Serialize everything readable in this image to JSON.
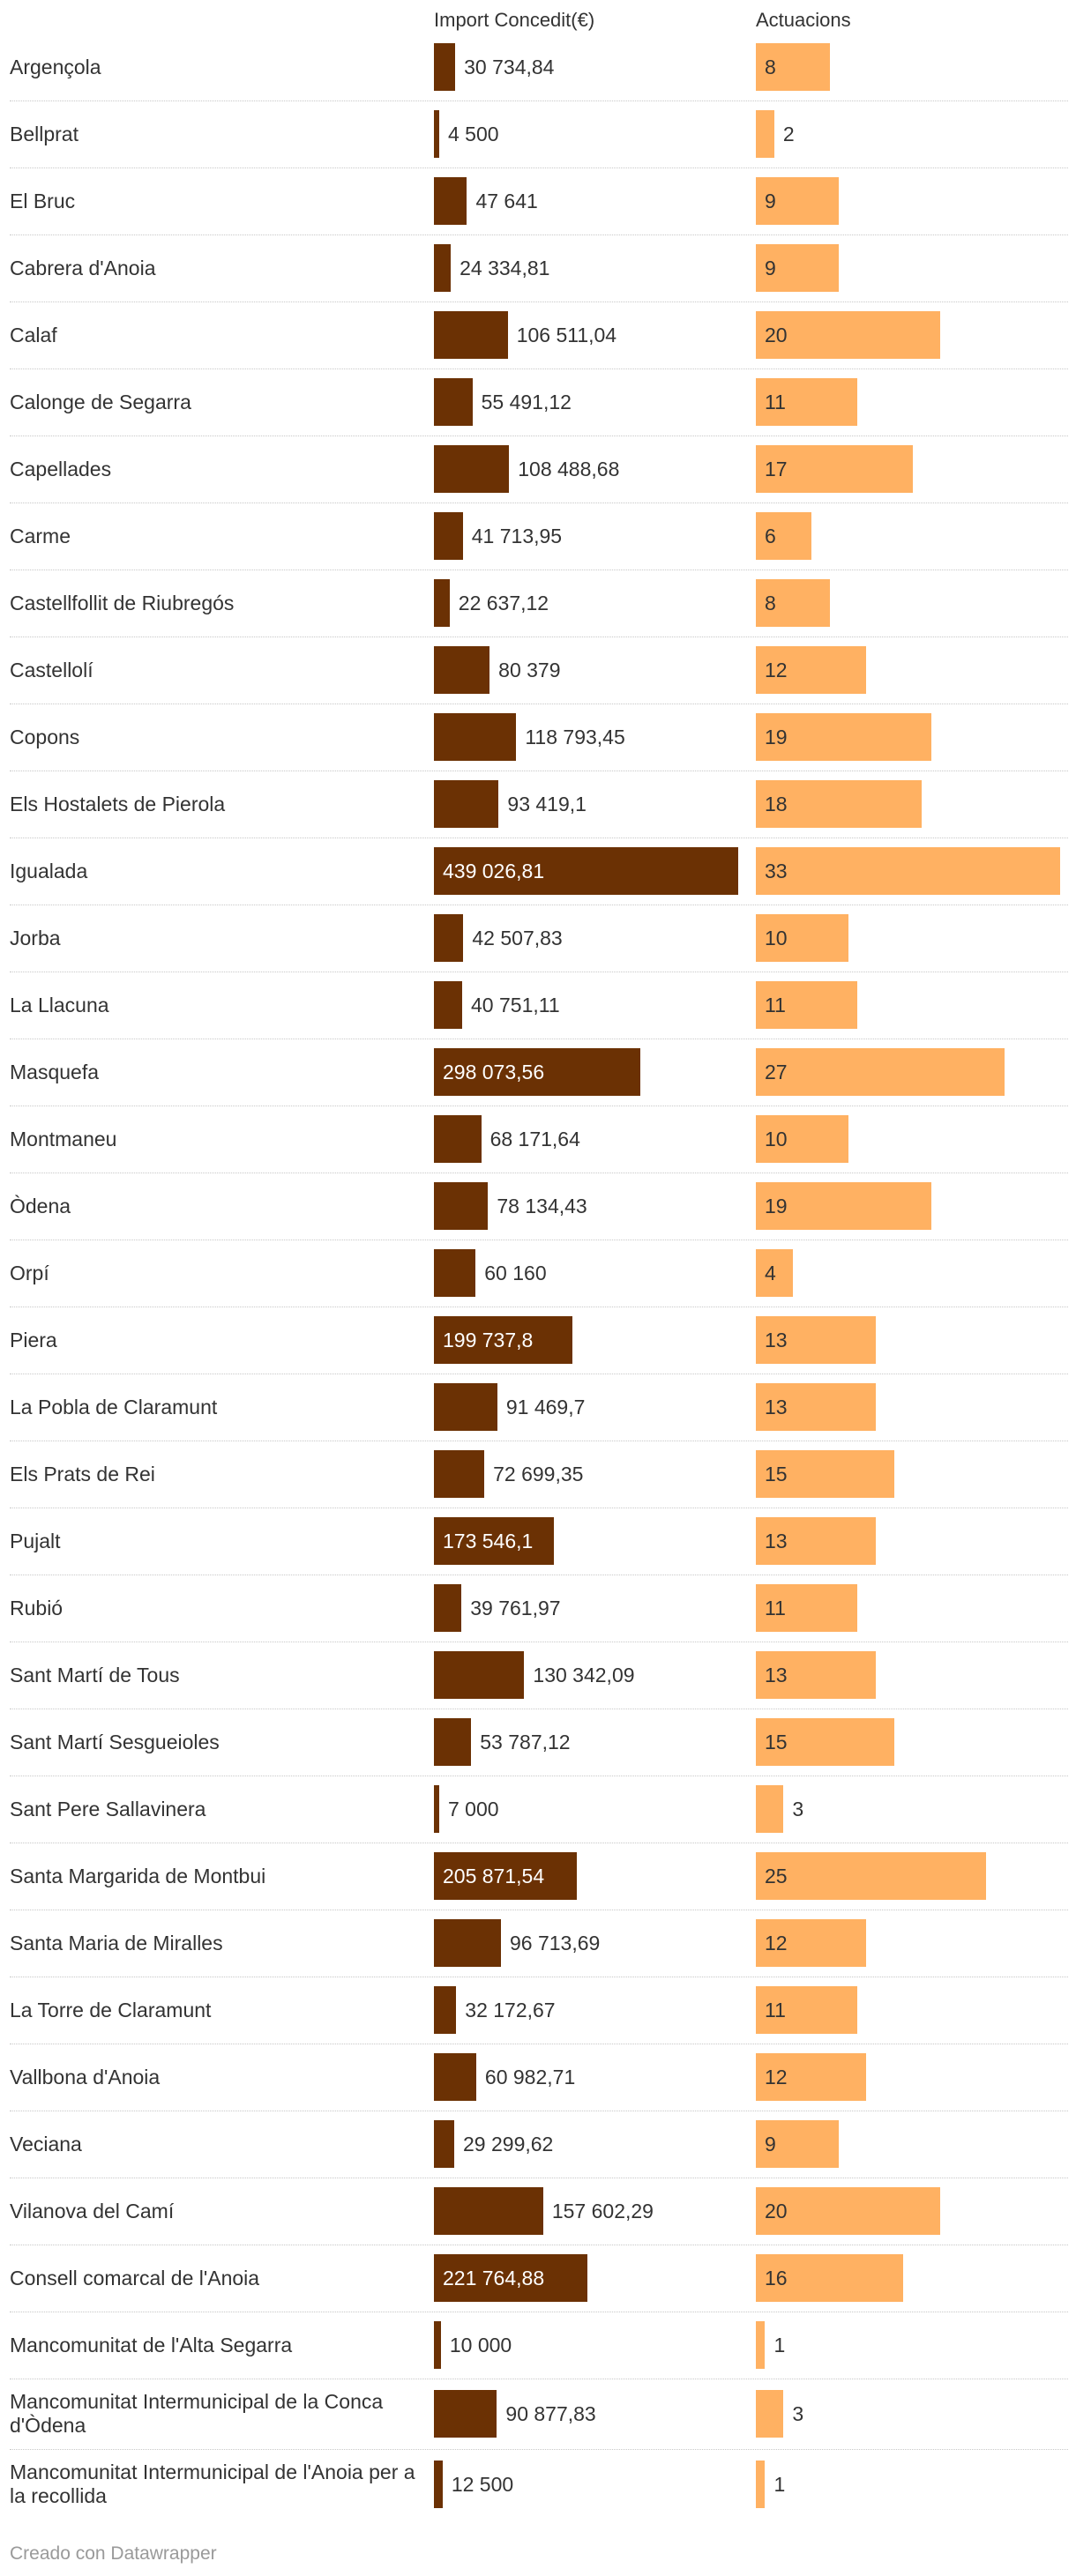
{
  "chart_data": {
    "type": "table",
    "columns": [
      "",
      "Import Concedit(€)",
      "Actuacions"
    ],
    "series": [
      {
        "name": "Import Concedit(€)",
        "color": "#6b3104"
      },
      {
        "name": "Actuacions",
        "color": "#ffb162"
      }
    ],
    "rows": [
      {
        "name": "Argençola",
        "import": 30734.84,
        "import_label": "30 734,84",
        "actuacions": 8
      },
      {
        "name": "Bellprat",
        "import": 4500,
        "import_label": "4 500",
        "actuacions": 2
      },
      {
        "name": "El Bruc",
        "import": 47641,
        "import_label": "47 641",
        "actuacions": 9
      },
      {
        "name": "Cabrera d'Anoia",
        "import": 24334.81,
        "import_label": "24 334,81",
        "actuacions": 9
      },
      {
        "name": "Calaf",
        "import": 106511.04,
        "import_label": "106 511,04",
        "actuacions": 20
      },
      {
        "name": "Calonge de Segarra",
        "import": 55491.12,
        "import_label": "55 491,12",
        "actuacions": 11
      },
      {
        "name": "Capellades",
        "import": 108488.68,
        "import_label": "108 488,68",
        "actuacions": 17
      },
      {
        "name": "Carme",
        "import": 41713.95,
        "import_label": "41 713,95",
        "actuacions": 6
      },
      {
        "name": "Castellfollit de Riubregós",
        "import": 22637.12,
        "import_label": "22 637,12",
        "actuacions": 8
      },
      {
        "name": "Castellolí",
        "import": 80379,
        "import_label": "80 379",
        "actuacions": 12
      },
      {
        "name": "Copons",
        "import": 118793.45,
        "import_label": "118 793,45",
        "actuacions": 19
      },
      {
        "name": "Els Hostalets de Pierola",
        "import": 93419.1,
        "import_label": "93 419,1",
        "actuacions": 18
      },
      {
        "name": "Igualada",
        "import": 439026.81,
        "import_label": "439 026,81",
        "actuacions": 33
      },
      {
        "name": "Jorba",
        "import": 42507.83,
        "import_label": "42 507,83",
        "actuacions": 10
      },
      {
        "name": "La Llacuna",
        "import": 40751.11,
        "import_label": "40 751,11",
        "actuacions": 11
      },
      {
        "name": "Masquefa",
        "import": 298073.56,
        "import_label": "298 073,56",
        "actuacions": 27
      },
      {
        "name": "Montmaneu",
        "import": 68171.64,
        "import_label": "68 171,64",
        "actuacions": 10
      },
      {
        "name": "Òdena",
        "import": 78134.43,
        "import_label": "78 134,43",
        "actuacions": 19
      },
      {
        "name": "Orpí",
        "import": 60160,
        "import_label": "60 160",
        "actuacions": 4
      },
      {
        "name": "Piera",
        "import": 199737.8,
        "import_label": "199 737,8",
        "actuacions": 13
      },
      {
        "name": "La Pobla de Claramunt",
        "import": 91469.7,
        "import_label": "91 469,7",
        "actuacions": 13
      },
      {
        "name": "Els Prats de Rei",
        "import": 72699.35,
        "import_label": "72 699,35",
        "actuacions": 15
      },
      {
        "name": "Pujalt",
        "import": 173546.1,
        "import_label": "173 546,1",
        "actuacions": 13
      },
      {
        "name": "Rubió",
        "import": 39761.97,
        "import_label": "39 761,97",
        "actuacions": 11
      },
      {
        "name": "Sant Martí de Tous",
        "import": 130342.09,
        "import_label": "130 342,09",
        "actuacions": 13
      },
      {
        "name": "Sant Martí Sesgueioles",
        "import": 53787.12,
        "import_label": "53 787,12",
        "actuacions": 15
      },
      {
        "name": "Sant Pere Sallavinera",
        "import": 7000,
        "import_label": "7 000",
        "actuacions": 3
      },
      {
        "name": "Santa Margarida de Montbui",
        "import": 205871.54,
        "import_label": "205 871,54",
        "actuacions": 25
      },
      {
        "name": "Santa Maria de Miralles",
        "import": 96713.69,
        "import_label": "96 713,69",
        "actuacions": 12
      },
      {
        "name": "La Torre de Claramunt",
        "import": 32172.67,
        "import_label": "32 172,67",
        "actuacions": 11
      },
      {
        "name": "Vallbona d'Anoia",
        "import": 60982.71,
        "import_label": "60 982,71",
        "actuacions": 12
      },
      {
        "name": "Veciana",
        "import": 29299.62,
        "import_label": "29 299,62",
        "actuacions": 9
      },
      {
        "name": "Vilanova del Camí",
        "import": 157602.29,
        "import_label": "157 602,29",
        "actuacions": 20
      },
      {
        "name": "Consell comarcal de l'Anoia",
        "import": 221764.88,
        "import_label": "221 764,88",
        "actuacions": 16
      },
      {
        "name": "Mancomunitat de l'Alta Segarra",
        "import": 10000,
        "import_label": "10 000",
        "actuacions": 1
      },
      {
        "name": "Mancomunitat Intermunicipal de la Conca d'Òdena",
        "import": 90877.83,
        "import_label": "90 877,83",
        "actuacions": 3
      },
      {
        "name": "Mancomunitat Intermunicipal de l'Anoia per a la recollida",
        "import": 12500,
        "import_label": "12 500",
        "actuacions": 1
      }
    ]
  },
  "footer": "Creado con Datawrapper"
}
